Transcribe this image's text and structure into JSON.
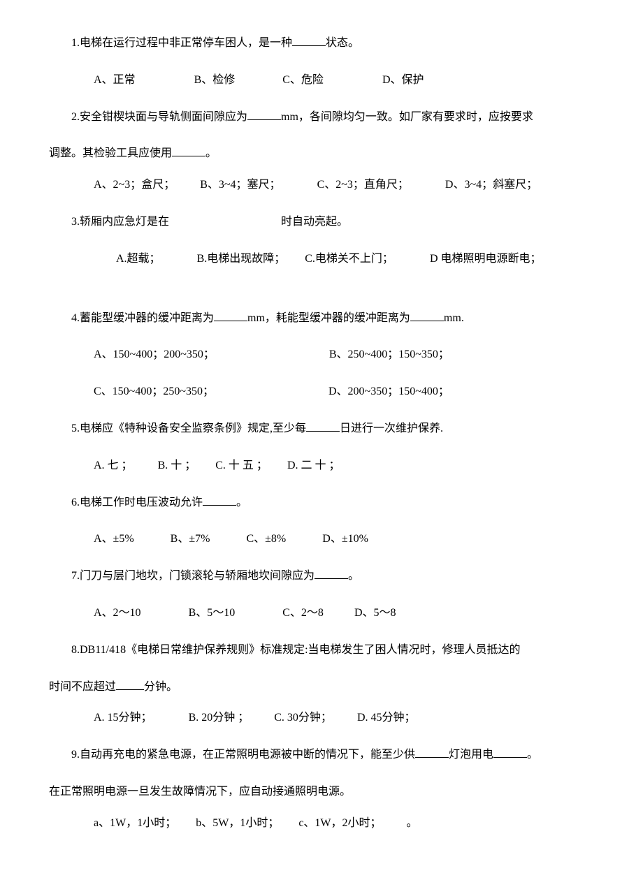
{
  "q1": {
    "text_before": "1.电梯在运行过程中非正常停车困人，是一种",
    "text_after": "状态。",
    "opts": {
      "a": "A、正常",
      "b": "B、检修",
      "c": "C、危险",
      "d": "D、保护"
    }
  },
  "q2": {
    "text_before": "2.安全钳楔块面与导轨侧面间隙应为",
    "text_mid": "mm，各间隙均匀一致。如厂家有要求时，应按要求",
    "line2_before": "调整。其检验工具应使用",
    "line2_after": "。",
    "opts": {
      "a": "A、2~3；盒尺；",
      "b": "B、3~4；塞尺；",
      "c": "C、2~3；直角尺；",
      "d": "D、3~4；斜塞尺；"
    }
  },
  "q3": {
    "text_before": "3.轿厢内应急灯是在",
    "text_after": "时自动亮起。",
    "opts": {
      "a": "A.超载；",
      "b": "B.电梯出现故障；",
      "c": "C.电梯关不上门；",
      "d": "D 电梯照明电源断电；"
    }
  },
  "q4": {
    "text_before": "4.蓄能型缓冲器的缓冲距离为",
    "text_mid": "mm，耗能型缓冲器的缓冲距离为",
    "text_after": "mm.",
    "opts": {
      "a": "A、150~400；200~350；",
      "b": "B、250~400；150~350；",
      "c": "C、150~400；250~350；",
      "d": "D、200~350；150~400；"
    }
  },
  "q5": {
    "text_before": "5.电梯应《特种设备安全监察条例》规定,至少每",
    "text_after": "日进行一次维护保养.",
    "opts": {
      "a": "A. 七 ；",
      "b": "B. 十 ；",
      "c": "C. 十 五 ；",
      "d": "D. 二 十 ；"
    }
  },
  "q6": {
    "text_before": "6.电梯工作时电压波动允许",
    "text_after": "。",
    "opts": {
      "a": "A、±5%",
      "b": "B、±7%",
      "c": "C、±8%",
      "d": "D、±10%"
    }
  },
  "q7": {
    "text_before": "7.门刀与层门地坎，门锁滚轮与轿厢地坎间隙应为",
    "text_after": "。",
    "opts": {
      "a": "A、2～10",
      "b": "B、5～10",
      "c": "C、2～8",
      "d": "D、5～8"
    }
  },
  "q8": {
    "text": "8.DB11/418《电梯日常维护保养规则》标准规定:当电梯发生了困人情况时，修理人员抵达的",
    "line2_before": "时间不应超过",
    "line2_after": "分钟。",
    "opts": {
      "a": "A. 15分钟；",
      "b": "B. 20分钟 ；",
      "c": "C. 30分钟；",
      "d": "D. 45分钟；"
    }
  },
  "q9": {
    "text_before": "9.自动再充电的紧急电源，在正常照明电源被中断的情况下，能至少供",
    "text_mid": "灯泡用电",
    "text_after": "。",
    "line2": "在正常照明电源一旦发生故障情况下，应自动接通照明电源。",
    "opts": {
      "a": "a、1W，1小时；",
      "b": "b、5W，1小时；",
      "c": "c、1W，2小时；",
      "d": "。"
    }
  }
}
